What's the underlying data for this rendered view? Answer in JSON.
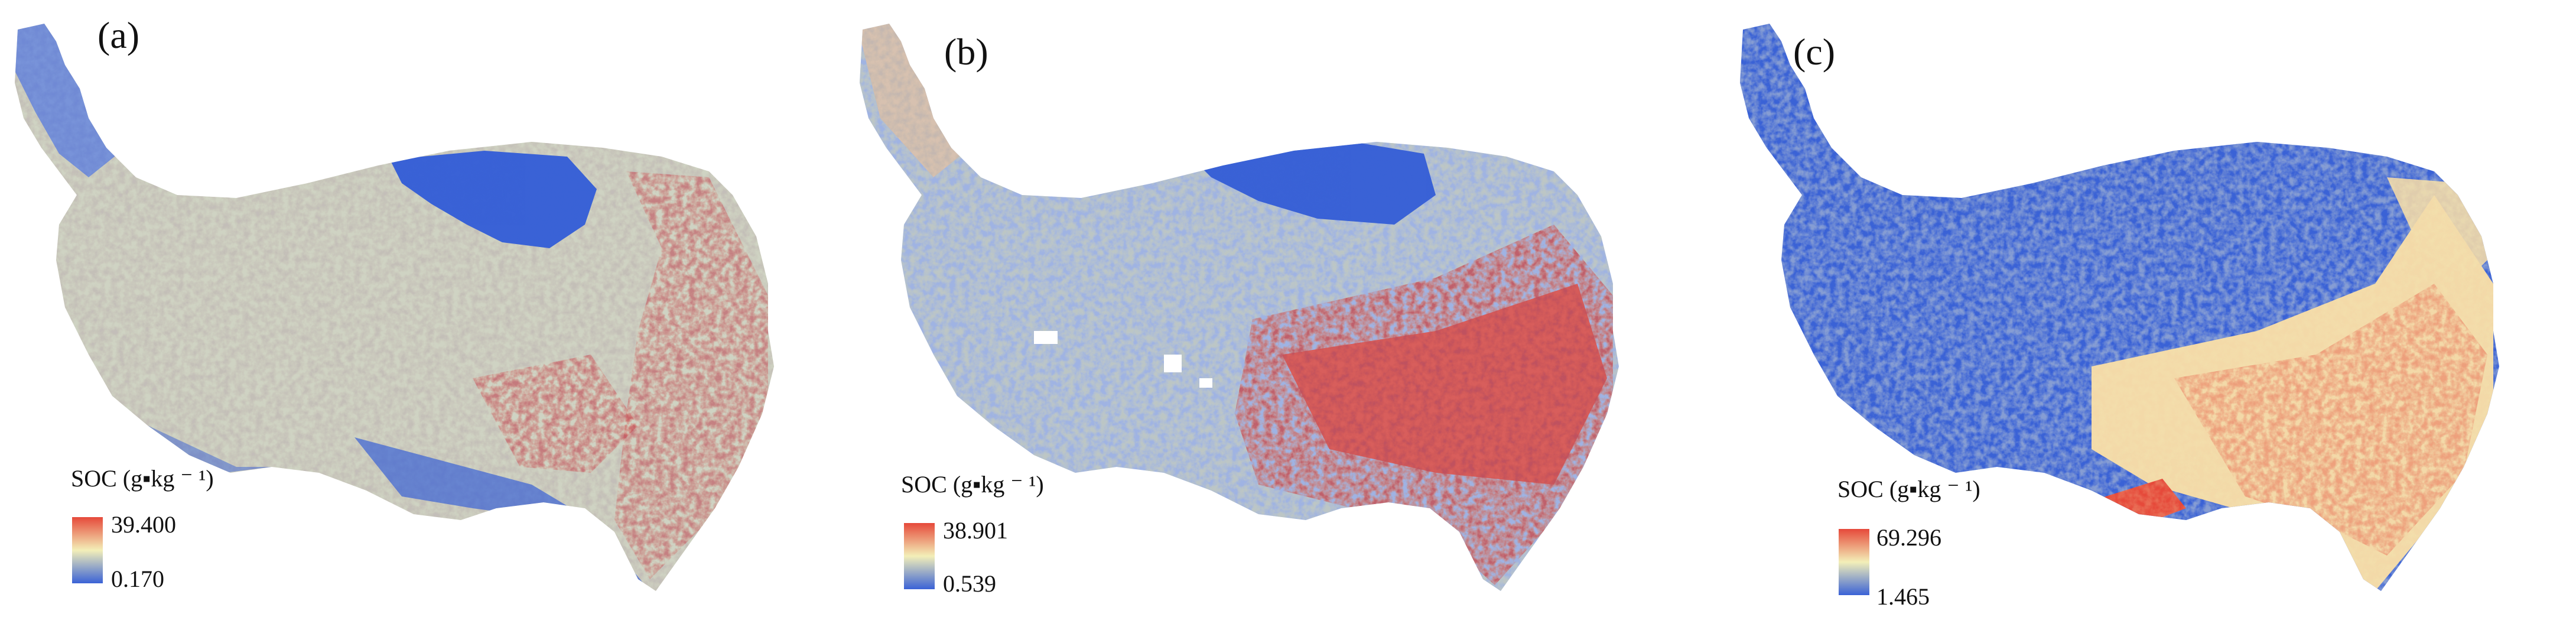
{
  "colors": {
    "low": "#3a62d6",
    "mid": "#f3efb8",
    "neutral": "#cfd3c3",
    "high": "#e6493a",
    "background": "#ffffff"
  },
  "panels": [
    {
      "label": "(a)",
      "legend": {
        "title": "SOC (g▪kg ⁻ ¹)",
        "max": "39.400",
        "min": "0.170"
      },
      "style": "neutral-dominant"
    },
    {
      "label": "(b)",
      "legend": {
        "title": "SOC (g▪kg ⁻ ¹)",
        "max": "38.901",
        "min": "0.539"
      },
      "style": "southeast-high"
    },
    {
      "label": "(c)",
      "legend": {
        "title": "SOC (g▪kg ⁻ ¹)",
        "max": "69.296",
        "min": "1.465"
      },
      "style": "north-low"
    }
  ]
}
